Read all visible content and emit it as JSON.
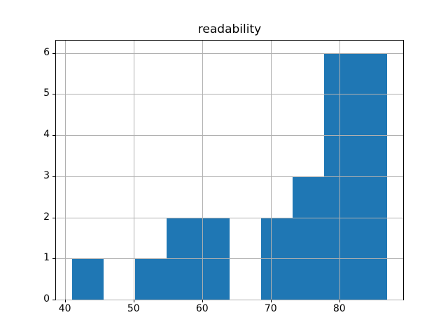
{
  "chart_data": {
    "type": "bar",
    "subtype": "histogram",
    "title": "readability",
    "xlabel": "",
    "ylabel": "",
    "bin_edges": [
      41.0,
      45.6,
      50.2,
      54.8,
      59.4,
      64.0,
      68.6,
      73.2,
      77.8,
      82.4,
      87.0
    ],
    "counts": [
      1,
      0,
      1,
      2,
      2,
      0,
      2,
      3,
      6,
      6
    ],
    "xticks": [
      40,
      50,
      60,
      70,
      80
    ],
    "yticks": [
      0,
      1,
      2,
      3,
      4,
      5,
      6
    ],
    "xlim": [
      38.7,
      89.3
    ],
    "ylim": [
      0,
      6.3
    ],
    "grid": true,
    "legend": false,
    "bar_color": "#1f77b4",
    "grid_color": "#b0b0b0",
    "background_color": "#ffffff",
    "text_color": "#000000"
  }
}
